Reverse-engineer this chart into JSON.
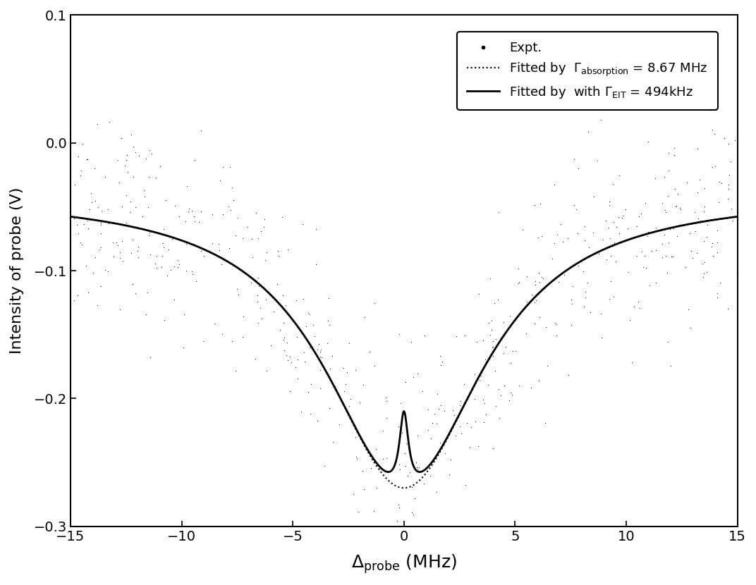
{
  "title": "",
  "xlabel": "$\\Delta_{\\mathrm{probe}}$ (MHz)",
  "ylabel": "Intensity of probe (V)",
  "xlim": [
    -15,
    15
  ],
  "ylim": [
    -0.3,
    0.1
  ],
  "xticks": [
    -15,
    -10,
    -5,
    0,
    5,
    10,
    15
  ],
  "yticks": [
    -0.3,
    -0.2,
    -0.1,
    0.0,
    0.1
  ],
  "legend": {
    "expt_label": "Expt.",
    "dotted_label": "Fitted by  $\\Gamma_{\\mathrm{absorption}}$ = 8.67 MHz",
    "solid_label": "Fitted by  with $\\Gamma_{\\mathrm{EIT}}$ = 494kHz"
  },
  "bg_color": "#ffffff",
  "line_color": "#000000",
  "seed": 42
}
